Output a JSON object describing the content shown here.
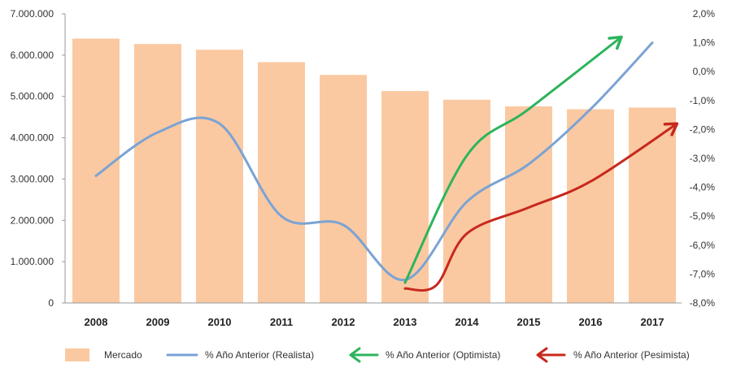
{
  "chart_data": {
    "type": "bar",
    "categories": [
      "2008",
      "2009",
      "2010",
      "2011",
      "2012",
      "2013",
      "2014",
      "2015",
      "2016",
      "2017"
    ],
    "bar_series": {
      "name": "Mercado",
      "values": [
        6400000,
        6270000,
        6130000,
        5830000,
        5520000,
        5130000,
        4920000,
        4760000,
        4690000,
        4730000
      ],
      "color": "#FAC9A1"
    },
    "y_left": {
      "ticks": [
        0,
        1000000,
        2000000,
        3000000,
        4000000,
        5000000,
        6000000,
        7000000
      ],
      "tick_labels": [
        "0",
        "1.000.000",
        "2.000.000",
        "3.000.000",
        "4.000.000",
        "5.000.000",
        "6.000.000",
        "7.000.000"
      ],
      "ylim": [
        0,
        7000000
      ]
    },
    "y_right": {
      "ticks": [
        -8,
        -7,
        -6,
        -5,
        -4,
        -3,
        -2,
        -1,
        0,
        1,
        2
      ],
      "tick_labels": [
        "-8,0%",
        "-7,0%",
        "-6,0%",
        "-5,0%",
        "-4,0%",
        "-3,0%",
        "-2,0%",
        "-1,0%",
        "0,0%",
        "1,0%",
        "2,0%"
      ],
      "ylim": [
        -8,
        2
      ]
    },
    "line_series": [
      {
        "name": "% Año Anterior (Realista)",
        "color": "#7BA3D4",
        "arrow": false,
        "x": [
          0,
          1,
          2,
          3,
          4,
          5,
          6,
          7,
          8,
          9
        ],
        "values": [
          -3.6,
          -2.1,
          -1.8,
          -5.0,
          -5.3,
          -7.2,
          -4.5,
          -3.2,
          -1.3,
          1.0
        ]
      },
      {
        "name": "% Año Anterior (Optimista)",
        "color": "#2DB45C",
        "arrow": true,
        "x": [
          5,
          6,
          7,
          8.5
        ],
        "values": [
          -7.3,
          -2.9,
          -1.3,
          1.2
        ]
      },
      {
        "name": "% Año Anterior (Pesimista)",
        "color": "#C8281E",
        "arrow": true,
        "x": [
          5,
          5.5,
          6,
          7,
          8,
          9.4
        ],
        "values": [
          -7.5,
          -7.4,
          -5.6,
          -4.7,
          -3.8,
          -1.8
        ]
      }
    ],
    "legend": {
      "position": "bottom"
    },
    "grid": false
  }
}
